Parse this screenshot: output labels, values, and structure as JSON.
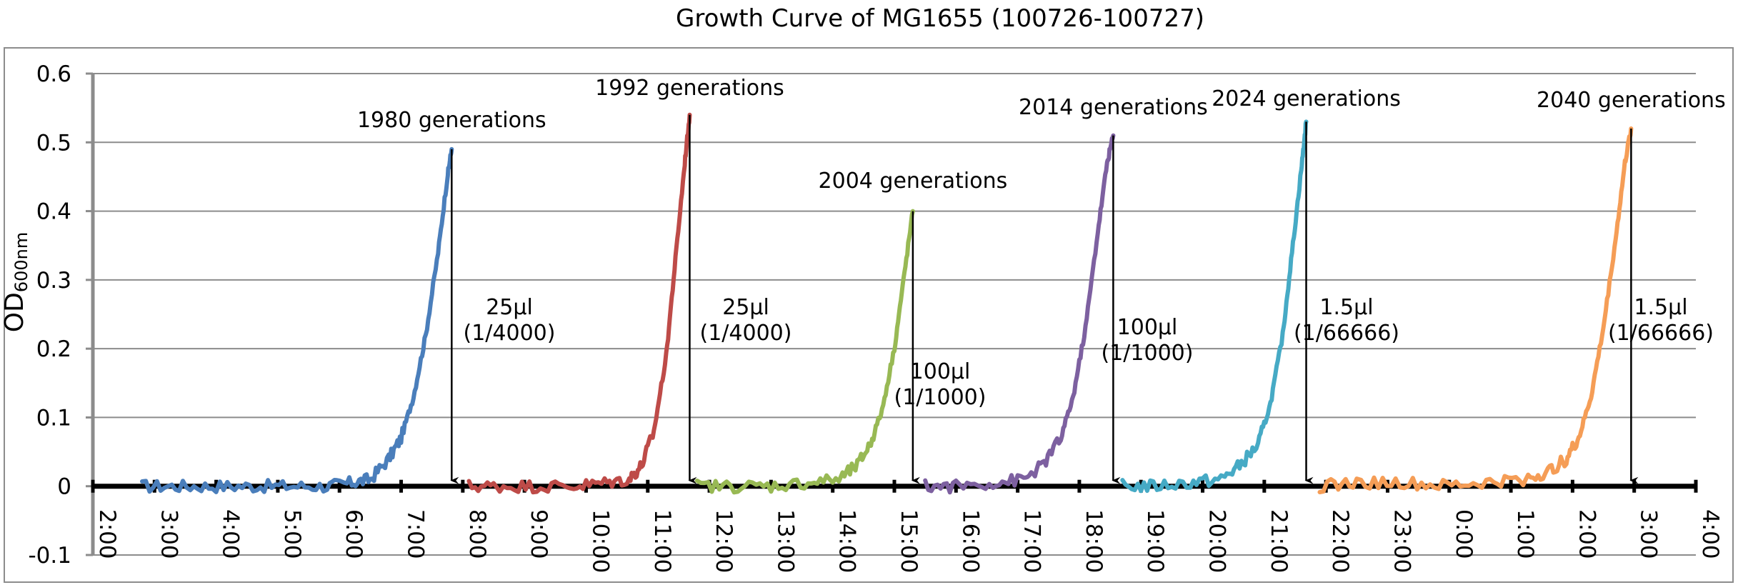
{
  "chart_data": {
    "type": "line",
    "title": "Growth Curve of MG1655 (100726-100727)",
    "ylabel": "OD",
    "ylabel_subscript": "600nm",
    "ylim": [
      -0.1,
      0.6
    ],
    "yticks": [
      -0.1,
      0,
      0.1,
      0.2,
      0.3,
      0.4,
      0.5,
      0.6
    ],
    "ytick_labels": [
      "-0.1",
      "0",
      "0.1",
      "0.2",
      "0.3",
      "0.4",
      "0.5",
      "0.6"
    ],
    "xlim_hours": [
      2,
      28
    ],
    "x_tick_hours": [
      2,
      3,
      4,
      5,
      6,
      7,
      8,
      9,
      10,
      11,
      12,
      13,
      14,
      15,
      16,
      17,
      18,
      19,
      20,
      21,
      22,
      23,
      24,
      25,
      26,
      27,
      28
    ],
    "x_tick_labels": [
      "2:00",
      "3:00",
      "4:00",
      "5:00",
      "6:00",
      "7:00",
      "8:00",
      "9:00",
      "10:00",
      "11:00",
      "12:00",
      "13:00",
      "14:00",
      "15:00",
      "16:00",
      "17:00",
      "18:00",
      "19:00",
      "20:00",
      "21:00",
      "22:00",
      "23:00",
      "0:00",
      "1:00",
      "2:00",
      "3:00",
      "4:00"
    ],
    "grid": true,
    "series": [
      {
        "color": "#4a7ebb",
        "points": [
          [
            2.8,
            0.0
          ],
          [
            3.4,
            0.0
          ],
          [
            4.0,
            0.0
          ],
          [
            4.6,
            0.0
          ],
          [
            5.2,
            0.0
          ],
          [
            5.8,
            0.0
          ],
          [
            6.2,
            0.005
          ],
          [
            6.5,
            0.01
          ],
          [
            6.8,
            0.04
          ],
          [
            7.0,
            0.07
          ],
          [
            7.2,
            0.13
          ],
          [
            7.4,
            0.22
          ],
          [
            7.6,
            0.34
          ],
          [
            7.75,
            0.45
          ],
          [
            7.82,
            0.49
          ]
        ]
      },
      {
        "color": "#be4b48",
        "points": [
          [
            8.1,
            0.0
          ],
          [
            8.6,
            0.0
          ],
          [
            9.2,
            0.0
          ],
          [
            9.8,
            0.0
          ],
          [
            10.3,
            0.005
          ],
          [
            10.7,
            0.01
          ],
          [
            10.9,
            0.03
          ],
          [
            11.1,
            0.08
          ],
          [
            11.3,
            0.19
          ],
          [
            11.45,
            0.33
          ],
          [
            11.6,
            0.47
          ],
          [
            11.68,
            0.54
          ]
        ]
      },
      {
        "color": "#98b954",
        "points": [
          [
            11.8,
            0.0
          ],
          [
            12.4,
            0.0
          ],
          [
            13.0,
            0.0
          ],
          [
            13.6,
            0.005
          ],
          [
            14.1,
            0.01
          ],
          [
            14.4,
            0.03
          ],
          [
            14.6,
            0.06
          ],
          [
            14.8,
            0.11
          ],
          [
            15.0,
            0.2
          ],
          [
            15.15,
            0.3
          ],
          [
            15.3,
            0.4
          ]
        ]
      },
      {
        "color": "#7d60a0",
        "points": [
          [
            15.5,
            0.0
          ],
          [
            16.0,
            0.0
          ],
          [
            16.6,
            0.005
          ],
          [
            17.1,
            0.01
          ],
          [
            17.4,
            0.03
          ],
          [
            17.7,
            0.07
          ],
          [
            17.9,
            0.13
          ],
          [
            18.1,
            0.23
          ],
          [
            18.3,
            0.37
          ],
          [
            18.45,
            0.47
          ],
          [
            18.55,
            0.51
          ]
        ]
      },
      {
        "color": "#46aac5",
        "points": [
          [
            18.7,
            0.0
          ],
          [
            19.2,
            0.0
          ],
          [
            19.8,
            0.005
          ],
          [
            20.3,
            0.01
          ],
          [
            20.6,
            0.03
          ],
          [
            20.9,
            0.06
          ],
          [
            21.1,
            0.12
          ],
          [
            21.3,
            0.22
          ],
          [
            21.45,
            0.34
          ],
          [
            21.6,
            0.46
          ],
          [
            21.68,
            0.53
          ]
        ]
      },
      {
        "color": "#f59d56",
        "points": [
          [
            21.9,
            0.0
          ],
          [
            22.5,
            0.005
          ],
          [
            23.2,
            0.005
          ],
          [
            23.9,
            0.0
          ],
          [
            24.6,
            0.005
          ],
          [
            25.2,
            0.01
          ],
          [
            25.6,
            0.02
          ],
          [
            25.9,
            0.04
          ],
          [
            26.1,
            0.07
          ],
          [
            26.3,
            0.13
          ],
          [
            26.5,
            0.23
          ],
          [
            26.7,
            0.36
          ],
          [
            26.85,
            0.47
          ],
          [
            26.95,
            0.52
          ]
        ]
      }
    ],
    "annotations": [
      {
        "label": "1980 generations",
        "x": 7.82,
        "y": 0.49
      },
      {
        "label": "1992 generations",
        "x": 11.68,
        "y": 0.54
      },
      {
        "label": "2004 generations",
        "x": 15.3,
        "y": 0.4
      },
      {
        "label": "2014 generations",
        "x": 18.55,
        "y": 0.51
      },
      {
        "label": "2024 generations",
        "x": 21.68,
        "y": 0.53
      },
      {
        "label": "2040 generations",
        "x": 26.95,
        "y": 0.52
      }
    ],
    "volume_labels": [
      {
        "volume": "25μl",
        "dilution": "(1/4000)"
      },
      {
        "volume": "25μl",
        "dilution": "(1/4000)"
      },
      {
        "volume": "100μl",
        "dilution": "(1/1000)"
      },
      {
        "volume": "100μl",
        "dilution": "(1/1000)"
      },
      {
        "volume": "1.5μl",
        "dilution": "(1/66666)"
      },
      {
        "volume": "1.5μl",
        "dilution": "(1/66666)"
      }
    ]
  }
}
